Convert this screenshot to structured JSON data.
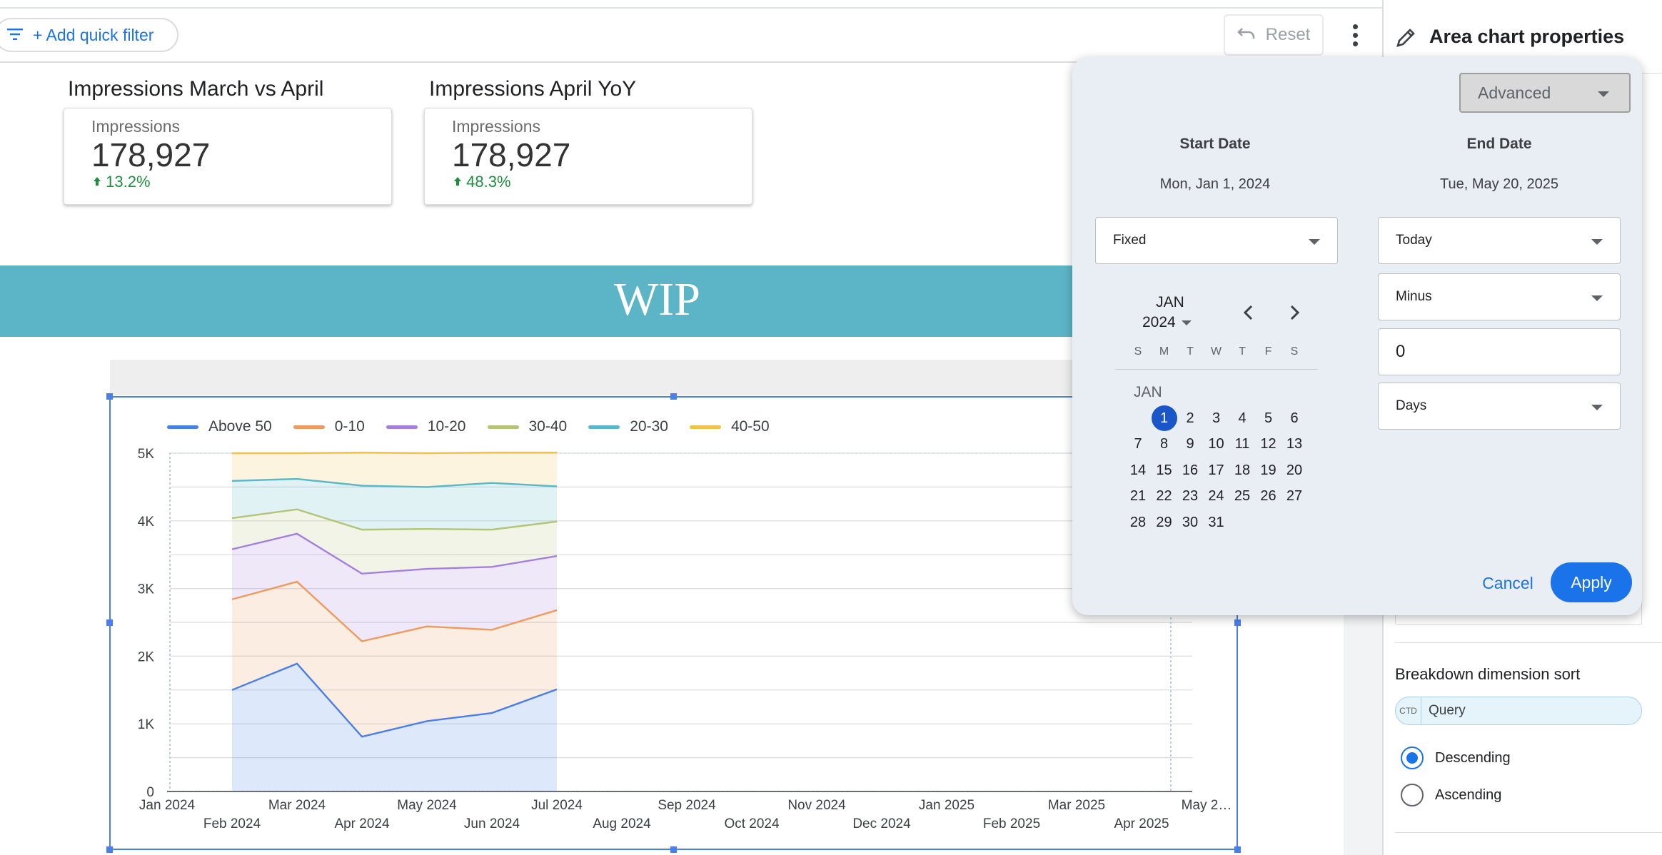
{
  "toolbar": {
    "quick_filter_label": "+ Add quick filter",
    "reset_label": "Reset"
  },
  "scorecards": [
    {
      "title": "Impressions March vs April",
      "metric_label": "Impressions",
      "value": "178,927",
      "delta": "13.2%"
    },
    {
      "title": "Impressions April YoY",
      "metric_label": "Impressions",
      "value": "178,927",
      "delta": "48.3%"
    }
  ],
  "banner": {
    "text": "WIP"
  },
  "right_panel": {
    "title": "Area chart properties",
    "breakdown_title": "Breakdown dimension sort",
    "chip_type": "CTD",
    "chip_label": "Query",
    "sort_options": [
      {
        "label": "Descending",
        "selected": true
      },
      {
        "label": "Ascending",
        "selected": false
      }
    ]
  },
  "date_popup": {
    "mode": "Advanced",
    "start": {
      "heading": "Start Date",
      "date": "Mon, Jan 1, 2024",
      "type": "Fixed"
    },
    "end": {
      "heading": "End Date",
      "date": "Tue, May 20, 2025",
      "type": "Today",
      "operator": "Minus",
      "amount": "0",
      "unit": "Days"
    },
    "calendar": {
      "month": "JAN",
      "year": "2024",
      "month_label": "JAN",
      "weekdays": [
        "S",
        "M",
        "T",
        "W",
        "T",
        "F",
        "S"
      ],
      "first_weekday_index": 1,
      "days_in_month": 31,
      "selected_day": 1
    },
    "cancel_label": "Cancel",
    "apply_label": "Apply"
  },
  "chart_data": {
    "type": "area",
    "stacked": true,
    "series": [
      {
        "name": "Above 50",
        "color": "#4a7ee8",
        "values": [
          1500,
          1890,
          810,
          1040,
          1160,
          1510
        ]
      },
      {
        "name": "0-10",
        "color": "#ee9a5f",
        "values": [
          1340,
          1210,
          1410,
          1400,
          1230,
          1170
        ]
      },
      {
        "name": "10-20",
        "color": "#a57fe0",
        "values": [
          740,
          710,
          1000,
          850,
          930,
          800
        ]
      },
      {
        "name": "30-40",
        "color": "#b2c477",
        "values": [
          460,
          360,
          650,
          590,
          550,
          510
        ]
      },
      {
        "name": "20-30",
        "color": "#58b7c9",
        "values": [
          550,
          450,
          650,
          620,
          690,
          520
        ]
      },
      {
        "name": "40-50",
        "color": "#f0c24a",
        "values": [
          410,
          380,
          490,
          500,
          450,
          500
        ]
      }
    ],
    "x_months": [
      "2024-01",
      "2024-02",
      "2024-03",
      "2024-04",
      "2024-05",
      "2024-06",
      "2024-07",
      "2024-08",
      "2024-09",
      "2024-10",
      "2024-11",
      "2024-12",
      "2025-01",
      "2025-02",
      "2025-03",
      "2025-04",
      "2025-05"
    ],
    "data_months": [
      "2024-02",
      "2024-03",
      "2024-04",
      "2024-05",
      "2024-06",
      "2024-07"
    ],
    "x_tick_labels": [
      "Jan 2024",
      "Feb 2024",
      "Mar 2024",
      "Apr 2024",
      "May 2024",
      "Jun 2024",
      "Jul 2024",
      "Aug 2024",
      "Sep 2024",
      "Oct 2024",
      "Nov 2024",
      "Dec 2024",
      "Jan 2025",
      "Feb 2025",
      "Mar 2025",
      "Apr 2025",
      "May 2…"
    ],
    "y_ticks": [
      "0",
      "1K",
      "2K",
      "3K",
      "4K",
      "5K"
    ],
    "ylim": [
      0,
      5000
    ],
    "grid": true,
    "legend_position": "top-left"
  }
}
